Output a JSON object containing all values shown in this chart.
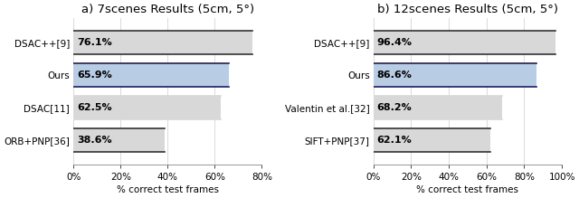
{
  "left": {
    "title": "a) 7scenes Results (5cm, 5°)",
    "labels": [
      "DSAC++[9]",
      "Ours",
      "DSAC[11]",
      "ORB+PNP[36]"
    ],
    "values": [
      76.1,
      65.9,
      62.5,
      38.6
    ],
    "colors": [
      "#d8d8d8",
      "#b8cce4",
      "#d8d8d8",
      "#d8d8d8"
    ],
    "edge_top": [
      "#333333",
      "#1f1f5a",
      "#d8d8d8",
      "#333333"
    ],
    "edge_bottom": [
      "#d8d8d8",
      "#1f1f5a",
      "#d8d8d8",
      "#d8d8d8"
    ],
    "edge_sides": [
      "#d8d8d8",
      "#d8d8d8",
      "#d8d8d8",
      "#d8d8d8"
    ],
    "text_labels": [
      "76.1%",
      "65.9%",
      "62.5%",
      "38.6%"
    ],
    "xlim": [
      0,
      80
    ],
    "xticks": [
      0,
      20,
      40,
      60,
      80
    ],
    "xticklabels": [
      "0%",
      "20%",
      "40%",
      "60%",
      "80%"
    ],
    "xlabel": "% correct test frames"
  },
  "right": {
    "title": "b) 12scenes Results (5cm, 5°)",
    "labels": [
      "DSAC++[9]",
      "Ours",
      "Valentin et al.[32]",
      "SIFT+PNP[37]"
    ],
    "values": [
      96.4,
      86.6,
      68.2,
      62.1
    ],
    "colors": [
      "#d8d8d8",
      "#b8cce4",
      "#d8d8d8",
      "#d8d8d8"
    ],
    "edge_top": [
      "#333333",
      "#1f1f5a",
      "#d8d8d8",
      "#333333"
    ],
    "edge_bottom": [
      "#d8d8d8",
      "#1f1f5a",
      "#d8d8d8",
      "#d8d8d8"
    ],
    "edge_sides": [
      "#d8d8d8",
      "#d8d8d8",
      "#d8d8d8",
      "#d8d8d8"
    ],
    "text_labels": [
      "96.4%",
      "86.6%",
      "68.2%",
      "62.1%"
    ],
    "xlim": [
      0,
      100
    ],
    "xticks": [
      0,
      20,
      40,
      60,
      80,
      100
    ],
    "xticklabels": [
      "0%",
      "20%",
      "40%",
      "60%",
      "80%",
      "100%"
    ],
    "xlabel": "% correct test frames"
  },
  "bar_height": 0.72,
  "bar_gap": 0.38,
  "title_fontsize": 9.5,
  "label_fontsize": 7.5,
  "tick_fontsize": 7.5,
  "value_fontsize": 8
}
